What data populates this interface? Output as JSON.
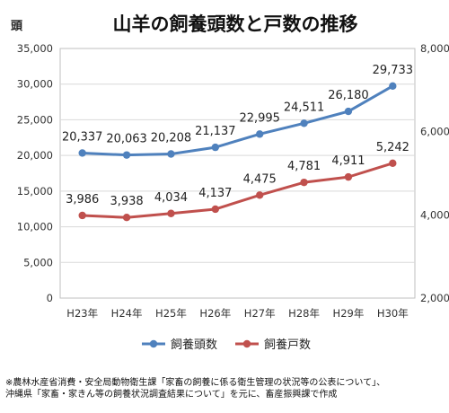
{
  "chart_data": {
    "type": "line",
    "title": "山羊の飼養頭数と戸数の推移",
    "ylabel": "頭",
    "categories": [
      "H23年",
      "H24年",
      "H25年",
      "H26年",
      "H27年",
      "H28年",
      "H29年",
      "H30年"
    ],
    "ylim": [
      0,
      35000
    ],
    "yticks": [
      "0",
      "5,000",
      "10,000",
      "15,000",
      "20,000",
      "25,000",
      "30,000",
      "35,000"
    ],
    "y2lim": [
      2000,
      8000
    ],
    "y2ticks": [
      "2,000",
      "4,000",
      "6,000",
      "8,000"
    ],
    "grid": true,
    "legend_position": "bottom",
    "series": [
      {
        "name": "飼養頭数",
        "axis": "left",
        "color": "#4f81bd",
        "values": [
          20337,
          20063,
          20208,
          21137,
          22995,
          24511,
          26180,
          29733
        ],
        "labels": [
          "20,337",
          "20,063",
          "20,208",
          "21,137",
          "22,995",
          "24,511",
          "26,180",
          "29,733"
        ]
      },
      {
        "name": "飼養戸数",
        "axis": "right",
        "color": "#c0504d",
        "values": [
          3986,
          3938,
          4034,
          4137,
          4475,
          4781,
          4911,
          5242
        ],
        "labels": [
          "3,986",
          "3,938",
          "4,034",
          "4,137",
          "4,475",
          "4,781",
          "4,911",
          "5,242"
        ]
      }
    ]
  },
  "footnote": {
    "line1": "※農林水産省消費・安全局動物衛生課「家畜の飼養に係る衛生管理の状況等の公表について」、",
    "line2": "沖縄県「家畜・家きん等の飼養状況調査結果について」を元に、畜産振興課で作成"
  }
}
